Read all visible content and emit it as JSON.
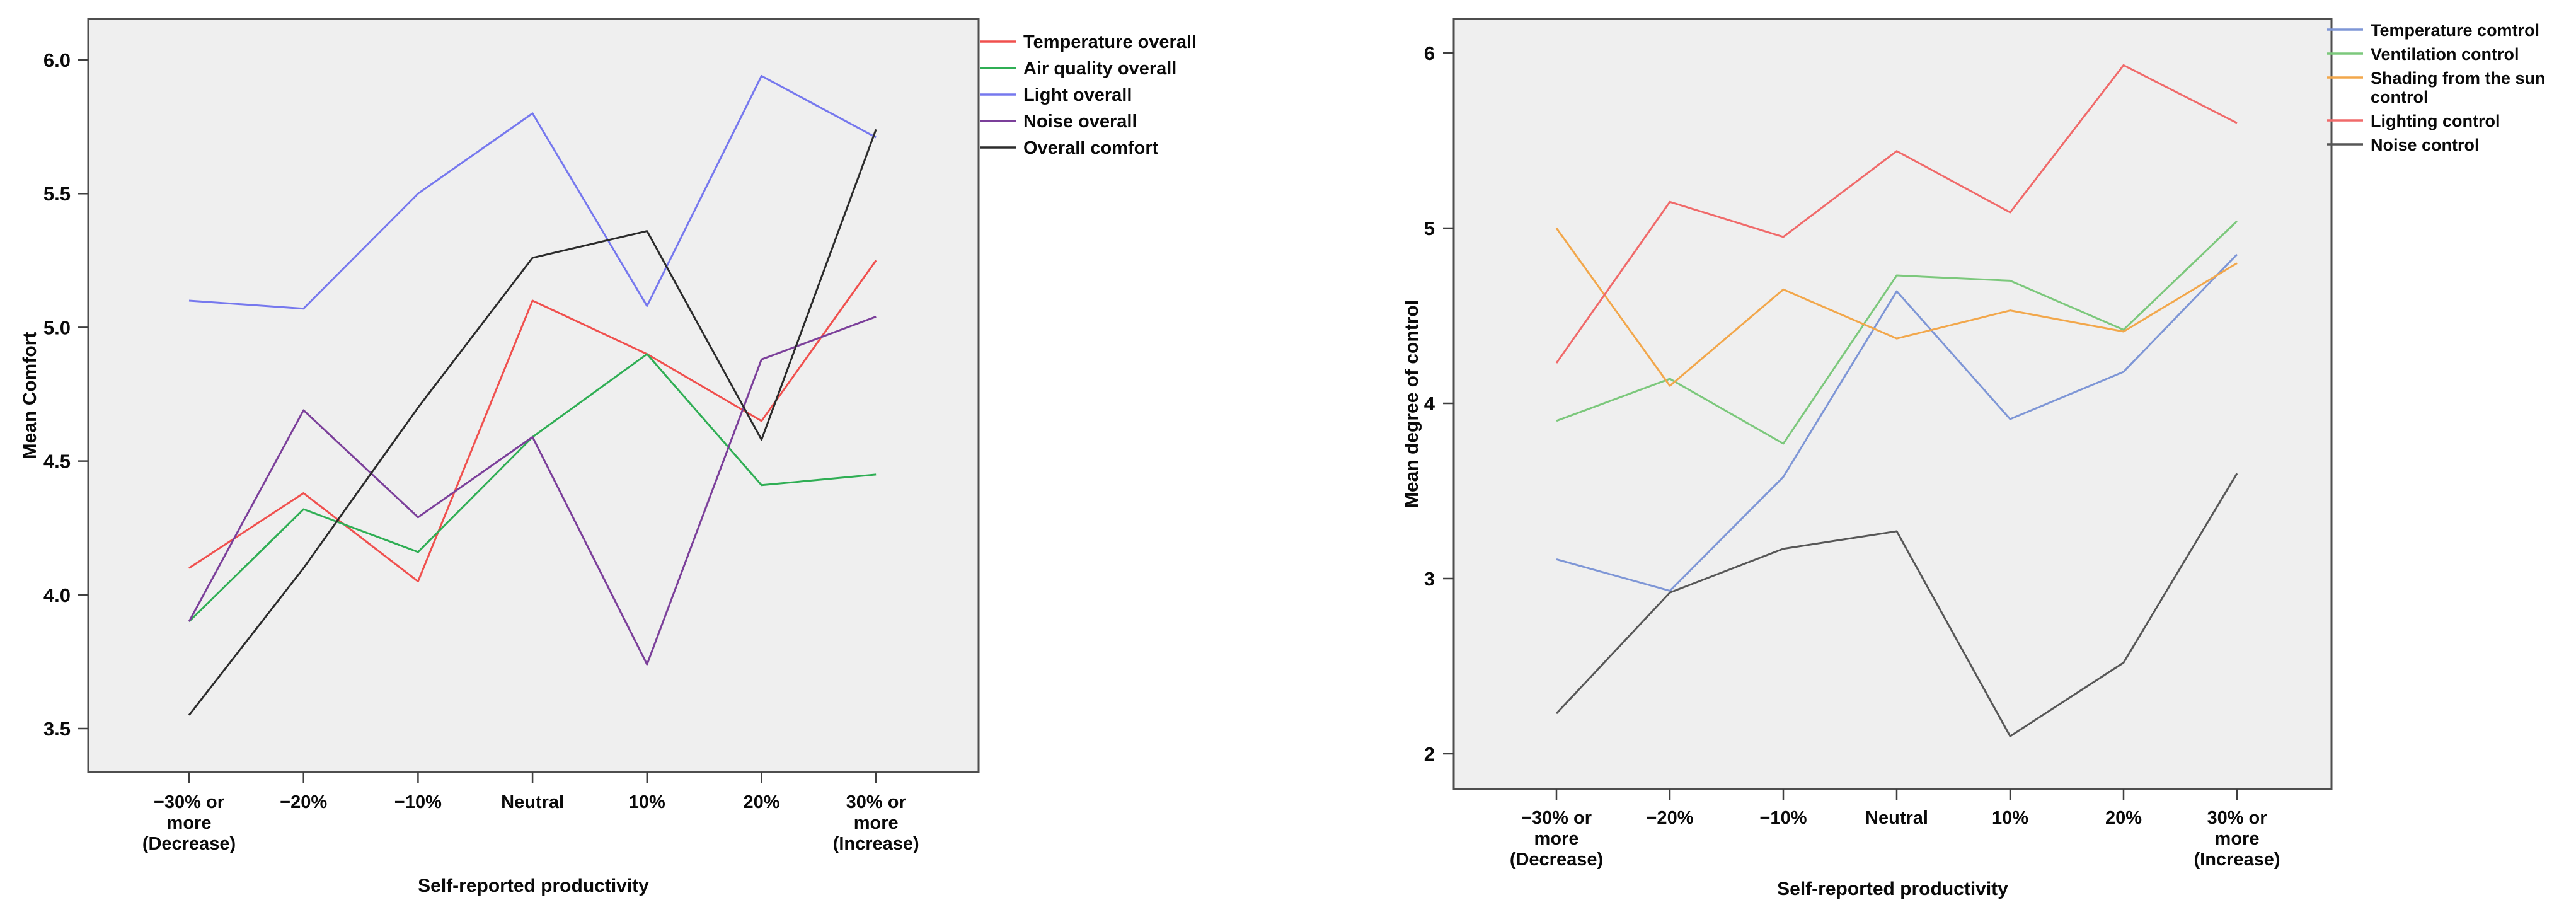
{
  "page": {
    "background": "#ffffff"
  },
  "chart_data": [
    {
      "type": "line",
      "key": "mean-comfort",
      "title": "",
      "ylabel": "Mean Comfort",
      "xlabel": "Self-reported productivity",
      "ylim": [
        3.5,
        6.0
      ],
      "yticks": [
        6.0,
        5.5,
        5.0,
        4.5,
        4.0,
        3.5
      ],
      "ytick_labels": [
        "6.0",
        "5.5",
        "5.0",
        "4.5",
        "4.0",
        "3.5"
      ],
      "categories": [
        "−30% or more (Decrease)",
        "−20%",
        "−10%",
        "Neutral",
        "10%",
        "20%",
        "30% or more (Increase)"
      ],
      "category_lines": [
        [
          "−30% or",
          "more",
          "(Decrease)"
        ],
        [
          "−20%"
        ],
        [
          "−10%"
        ],
        [
          "Neutral"
        ],
        [
          "10%"
        ],
        [
          "20%"
        ],
        [
          "30% or",
          "more",
          "(Increase)"
        ]
      ],
      "grid": false,
      "legend_position": "right",
      "plot_bg": "#efefef",
      "frame_color": "#4e4e4e",
      "series": [
        {
          "name": "Temperature overall",
          "color": "#f0504e",
          "values": [
            4.1,
            4.38,
            4.05,
            5.1,
            4.9,
            4.65,
            5.25
          ],
          "legend_lines": [
            "Temperature overall"
          ]
        },
        {
          "name": "Air quality overall",
          "color": "#2fae54",
          "values": [
            3.9,
            4.32,
            4.16,
            4.59,
            4.9,
            4.41,
            4.45
          ],
          "legend_lines": [
            "Air quality overall"
          ]
        },
        {
          "name": "Light overall",
          "color": "#7678ee",
          "values": [
            5.1,
            5.07,
            5.5,
            5.8,
            5.08,
            5.94,
            5.71
          ],
          "legend_lines": [
            "Light overall"
          ]
        },
        {
          "name": "Noise overall",
          "color": "#7b3f9a",
          "values": [
            3.9,
            4.69,
            4.29,
            4.59,
            3.74,
            4.88,
            5.04
          ],
          "legend_lines": [
            "Noise overall"
          ]
        },
        {
          "name": "Overall comfort",
          "color": "#2b2b2b",
          "values": [
            3.55,
            4.1,
            4.7,
            5.26,
            5.36,
            4.58,
            5.74
          ],
          "legend_lines": [
            "Overall comfort"
          ]
        }
      ]
    },
    {
      "type": "line",
      "key": "mean-degree-of-control",
      "title": "",
      "ylabel": "Mean degree of control",
      "xlabel": "Self-reported productivity",
      "ylim": [
        2,
        6
      ],
      "yticks": [
        6,
        5,
        4,
        3,
        2
      ],
      "ytick_labels": [
        "6",
        "5",
        "4",
        "3",
        "2"
      ],
      "categories": [
        "−30% or more (Decrease)",
        "−20%",
        "−10%",
        "Neutral",
        "10%",
        "20%",
        "30% or more (Increase)"
      ],
      "category_lines": [
        [
          "−30% or",
          "more",
          "(Decrease)"
        ],
        [
          "−20%"
        ],
        [
          "−10%"
        ],
        [
          "Neutral"
        ],
        [
          "10%"
        ],
        [
          "20%"
        ],
        [
          "30% or",
          "more",
          "(Increase)"
        ]
      ],
      "grid": false,
      "legend_position": "right",
      "plot_bg": "#efefef",
      "frame_color": "#4e4e4e",
      "series": [
        {
          "name": "Temperature comtrol",
          "color": "#7e96d6",
          "values": [
            3.11,
            2.93,
            3.58,
            4.64,
            3.91,
            4.18,
            4.85
          ],
          "legend_lines": [
            "Temperature comtrol"
          ]
        },
        {
          "name": "Ventilation control",
          "color": "#7cc87c",
          "values": [
            3.9,
            4.14,
            3.77,
            4.73,
            4.7,
            4.42,
            5.04
          ],
          "legend_lines": [
            "Ventilation control"
          ]
        },
        {
          "name": "Shading from the sun control",
          "color": "#f2a74b",
          "values": [
            5.0,
            4.1,
            4.65,
            4.37,
            4.53,
            4.41,
            4.8
          ],
          "legend_lines": [
            "Shading from the sun",
            "control"
          ]
        },
        {
          "name": "Lighting control",
          "color": "#f06a6a",
          "values": [
            4.23,
            5.15,
            4.95,
            5.44,
            5.09,
            5.93,
            5.6
          ],
          "legend_lines": [
            "Lighting control"
          ]
        },
        {
          "name": "Noise control",
          "color": "#575757",
          "values": [
            2.23,
            2.92,
            3.17,
            3.27,
            2.1,
            2.52,
            3.6
          ],
          "legend_lines": [
            "Noise control"
          ]
        }
      ]
    }
  ]
}
